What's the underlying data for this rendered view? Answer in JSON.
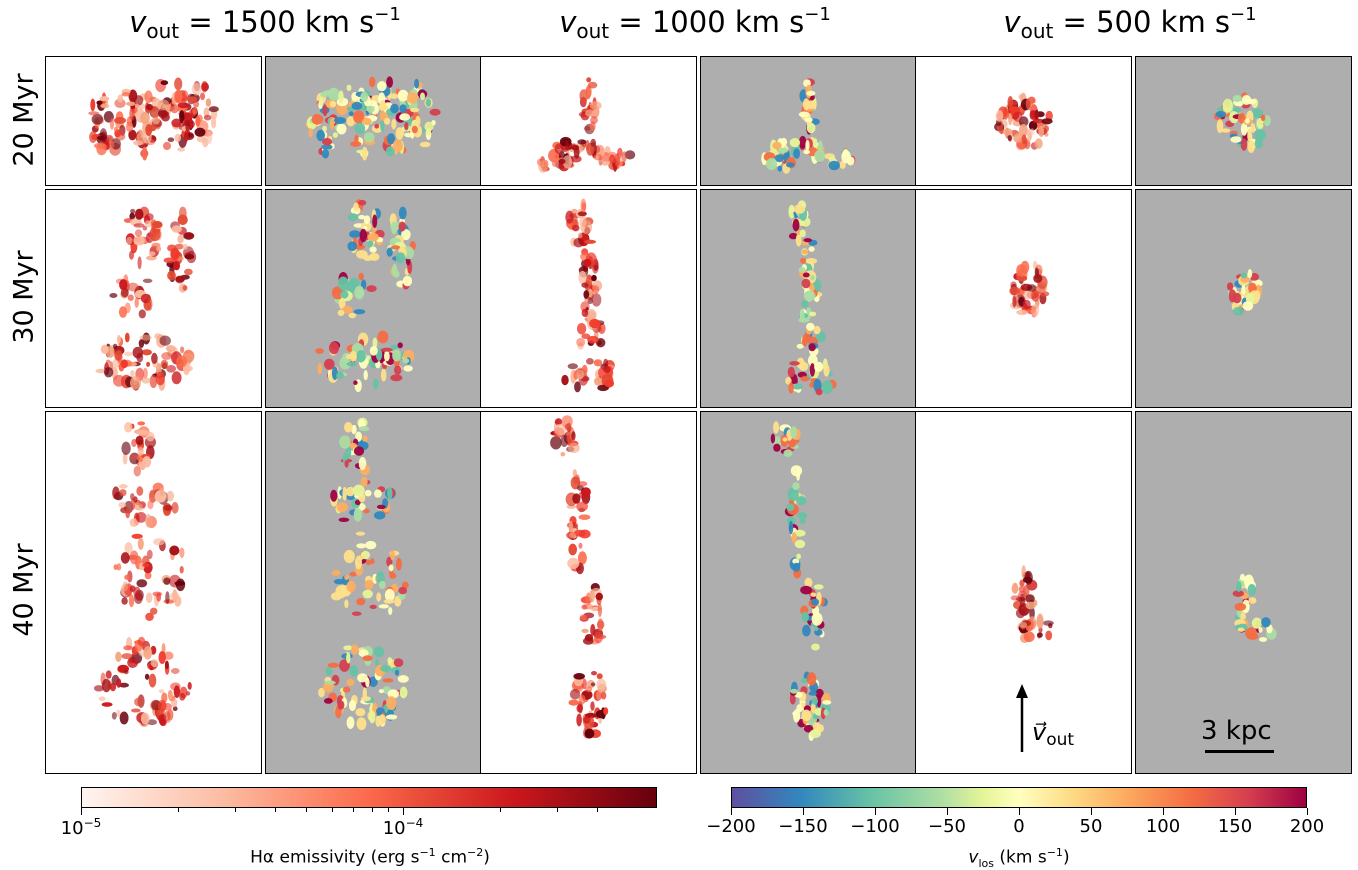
{
  "columns": [
    {
      "var": "v",
      "sub": "out",
      "eq": " = 1500 km s",
      "sup": "−1"
    },
    {
      "var": "v",
      "sub": "out",
      "eq": " = 1000 km s",
      "sup": "−1"
    },
    {
      "var": "v",
      "sub": "out",
      "eq": " = 500 km s",
      "sup": "−1"
    }
  ],
  "rows": [
    "20 Myr",
    "30 Myr",
    "40 Myr"
  ],
  "annotations": {
    "vout_arrow": "v⃗",
    "vout_arrow_sub": "out",
    "scalebar": "3 kpc"
  },
  "colorbar_emissivity": {
    "label_main": "Hα  emissivity (erg s",
    "label_sup1": "−1",
    "label_mid": " cm",
    "label_sup2": "−2",
    "label_end": ")",
    "ticks": [
      {
        "base": "10",
        "exp": "−5"
      },
      {
        "base": "10",
        "exp": "−4"
      }
    ],
    "colors": {
      "low": "#fff5f0",
      "mid": "#ef3b2c",
      "high": "#67000d"
    }
  },
  "colorbar_velocity": {
    "label_var": "v",
    "label_sub": "los",
    "label_rest": " (km s",
    "label_sup": "−1",
    "label_end": ")",
    "ticks": [
      "−200",
      "−150",
      "−100",
      "−50",
      "0",
      "50",
      "100",
      "150",
      "200"
    ],
    "colors": [
      "#5e4fa2",
      "#3288bd",
      "#66c2a5",
      "#abdda4",
      "#e6f598",
      "#ffffbf",
      "#fee08b",
      "#fdae61",
      "#f46d43",
      "#d53e4f",
      "#9e0142"
    ]
  }
}
